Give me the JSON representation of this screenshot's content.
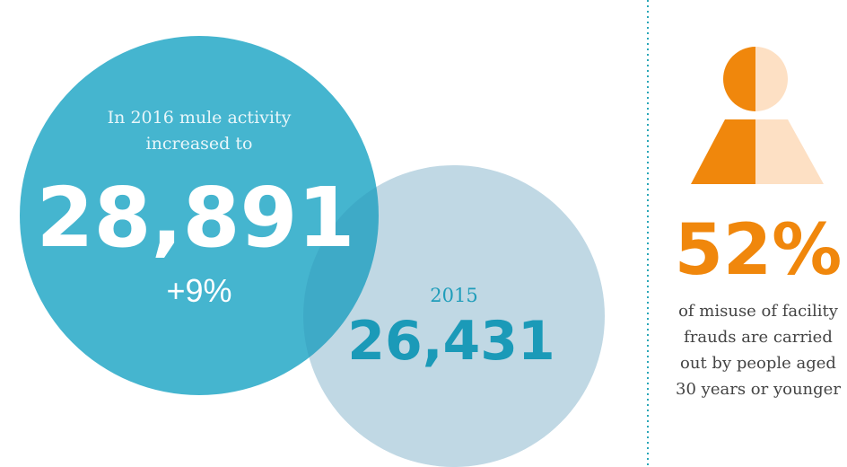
{
  "left": {
    "intro": [
      "In 2016 mule activity",
      "increased to"
    ],
    "value": "28,891",
    "change": "+9%"
  },
  "right": {
    "year": "2015",
    "value": "26,431"
  },
  "stat": {
    "value": "52%",
    "description": [
      "of misuse of facility",
      "frauds are carried",
      "out by people aged",
      "30 years or younger"
    ]
  }
}
